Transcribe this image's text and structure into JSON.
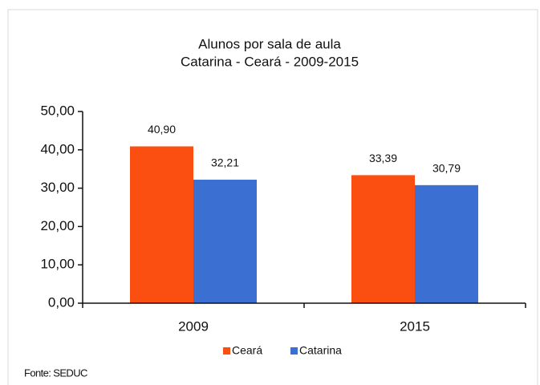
{
  "chart_data": {
    "type": "bar",
    "title": "Alunos por sala de aula",
    "subtitle": "Catarina - Ceará - 2009-2015",
    "categories": [
      "2009",
      "2015"
    ],
    "series": [
      {
        "name": "Ceará",
        "color": "#fb4f12",
        "values": [
          40.9,
          33.39
        ],
        "value_labels": [
          "40,90",
          "33,39"
        ]
      },
      {
        "name": "Catarina",
        "color": "#3b6fd2",
        "values": [
          32.21,
          30.79
        ],
        "value_labels": [
          "32,21",
          "30,79"
        ]
      }
    ],
    "ylim": [
      0,
      50
    ],
    "yticks": [
      {
        "value": 0,
        "label": "0,00"
      },
      {
        "value": 10,
        "label": "10,00"
      },
      {
        "value": 20,
        "label": "20,00"
      },
      {
        "value": 30,
        "label": "30,00"
      },
      {
        "value": 40,
        "label": "40,00"
      },
      {
        "value": 50,
        "label": "50,00"
      }
    ],
    "legend": "bottom",
    "source": "Fonte: SEDUC"
  }
}
